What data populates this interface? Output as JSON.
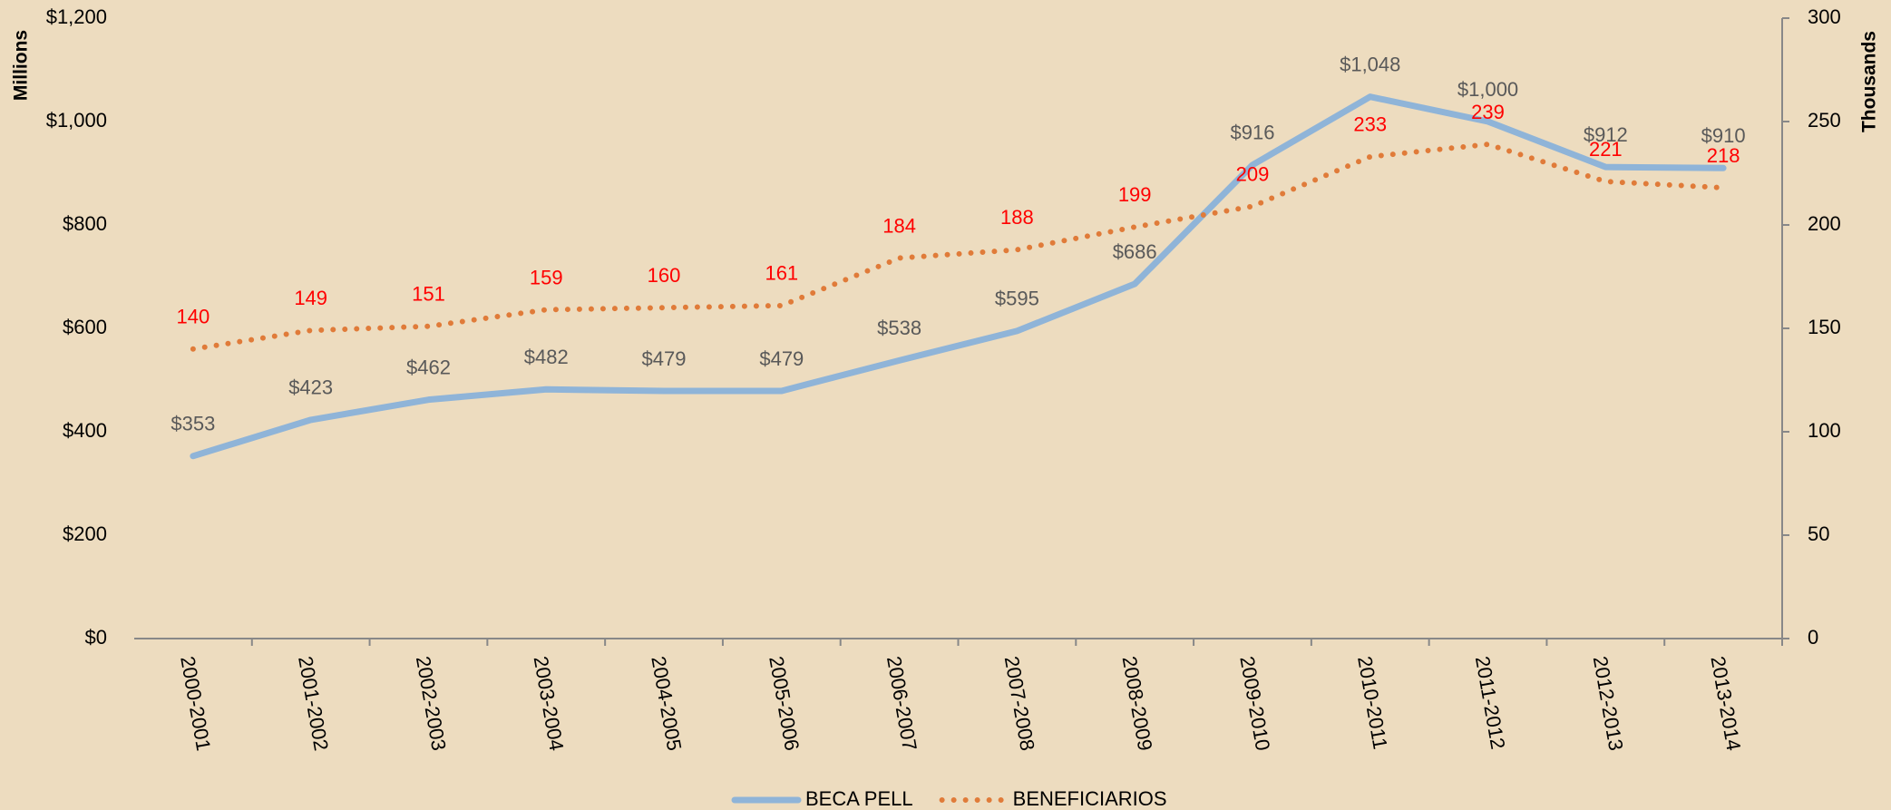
{
  "chart_data": {
    "type": "line",
    "categories": [
      "2000-2001",
      "2001-2002",
      "2002-2003",
      "2003-2004",
      "2004-2005",
      "2005-2006",
      "2006-2007",
      "2007-2008",
      "2008-2009",
      "2009-2010",
      "2010-2011",
      "2011-2012",
      "2012-2013",
      "2013-2014"
    ],
    "series": [
      {
        "name": "BECA PELL",
        "color": "#8fb4d8",
        "axis": "y",
        "values": [
          353,
          423,
          462,
          482,
          479,
          479,
          538,
          595,
          686,
          916,
          1048,
          1000,
          912,
          910
        ],
        "value_labels": [
          "$353",
          "$423",
          "$462",
          "$482",
          "$479",
          "$479",
          "$538",
          "$595",
          "$686",
          "$916",
          "$1,048",
          "$1,000",
          "$912",
          "$910"
        ]
      },
      {
        "name": "BENEFICIARIOS",
        "color": "#e07b39",
        "axis": "y2",
        "values": [
          140,
          149,
          151,
          159,
          160,
          161,
          184,
          188,
          199,
          209,
          233,
          239,
          221,
          218
        ]
      }
    ],
    "ylabel": "Millions",
    "y2label": "Thousands",
    "ylim": [
      0,
      1200
    ],
    "yticks": [
      {
        "value": 0,
        "label": "$0"
      },
      {
        "value": 200,
        "label": "$200"
      },
      {
        "value": 400,
        "label": "$400"
      },
      {
        "value": 600,
        "label": "$600"
      },
      {
        "value": 800,
        "label": "$800"
      },
      {
        "value": 1000,
        "label": "$1,000"
      },
      {
        "value": 1200,
        "label": "$1,200"
      }
    ],
    "y2lim": [
      0,
      300
    ],
    "y2ticks": [
      0,
      50,
      100,
      150,
      200,
      250,
      300
    ],
    "grid": false,
    "legend": "bottom"
  }
}
